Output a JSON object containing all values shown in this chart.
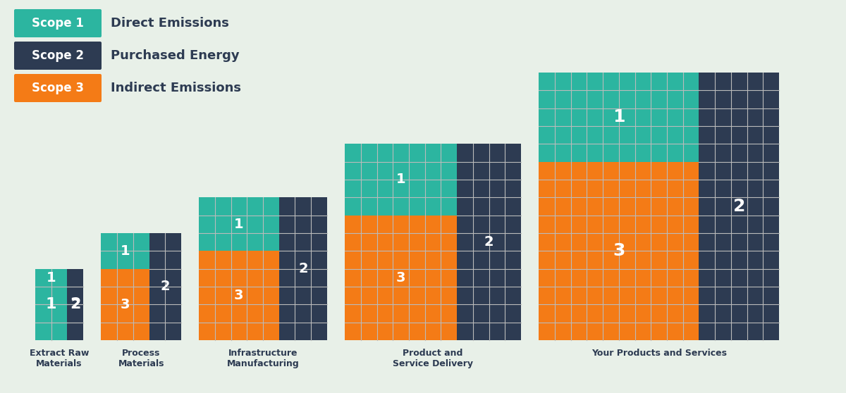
{
  "background_color": "#e8f0e8",
  "scope1_color": "#2CB5A0",
  "scope2_color": "#2D3B52",
  "scope3_color": "#F47B16",
  "grid_line_color": "#bbbbbb",
  "legend": [
    {
      "label": "Scope 1",
      "desc": "Direct Emissions",
      "color": "#2CB5A0"
    },
    {
      "label": "Scope 2",
      "desc": "Purchased Energy",
      "color": "#2D3B52"
    },
    {
      "label": "Scope 3",
      "desc": "Indirect Emissions",
      "color": "#F47B16"
    }
  ],
  "bars": [
    {
      "name": "Extract Raw\nMaterials",
      "s1_cols": 2,
      "s1_rows": 1,
      "s3_cols": 2,
      "s3_rows": 3,
      "s2_cols": 1,
      "s2_rows": 4,
      "total_cols": 3,
      "total_rows": 4
    },
    {
      "name": "Process\nMaterials",
      "s1_cols": 3,
      "s1_rows": 2,
      "s3_cols": 3,
      "s3_rows": 4,
      "s2_cols": 2,
      "s2_rows": 6,
      "total_cols": 5,
      "total_rows": 6
    },
    {
      "name": "Infrastructure\nManufacturing",
      "s1_cols": 5,
      "s1_rows": 3,
      "s3_cols": 5,
      "s3_rows": 5,
      "s2_cols": 3,
      "s2_rows": 8,
      "total_cols": 8,
      "total_rows": 8
    },
    {
      "name": "Product and\nService Delivery",
      "s1_cols": 7,
      "s1_rows": 4,
      "s3_cols": 7,
      "s3_rows": 7,
      "s2_cols": 4,
      "s2_rows": 11,
      "total_cols": 11,
      "total_rows": 11
    },
    {
      "name": "Your Products and Services",
      "s1_cols": 10,
      "s1_rows": 5,
      "s3_cols": 10,
      "s3_rows": 10,
      "s2_cols": 5,
      "s2_rows": 15,
      "total_cols": 15,
      "total_rows": 15
    }
  ]
}
